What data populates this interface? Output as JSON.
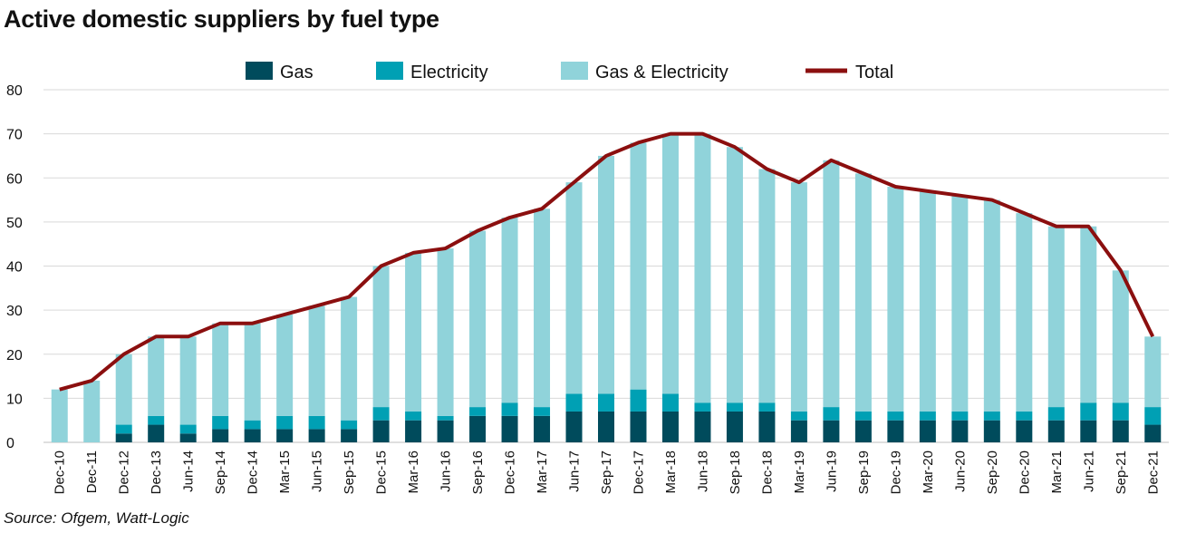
{
  "title": "Active domestic suppliers by fuel type",
  "source": "Source: Ofgem, Watt-Logic",
  "colors": {
    "gas": "#004b5c",
    "electricity": "#00a0b4",
    "gas_electricity": "#90d3da",
    "total": "#8b0f0f",
    "grid": "#d9d9d9",
    "text": "#111111"
  },
  "chart_data": {
    "type": "bar",
    "stacked": true,
    "title": "Active domestic suppliers by fuel type",
    "xlabel": "",
    "ylabel": "",
    "ylim": [
      0,
      80
    ],
    "yticks": [
      0,
      10,
      20,
      30,
      40,
      50,
      60,
      70,
      80
    ],
    "grid": true,
    "legend_position": "top",
    "categories": [
      "Dec-10",
      "Dec-11",
      "Dec-12",
      "Dec-13",
      "Jun-14",
      "Sep-14",
      "Dec-14",
      "Mar-15",
      "Jun-15",
      "Sep-15",
      "Dec-15",
      "Mar-16",
      "Jun-16",
      "Sep-16",
      "Dec-16",
      "Mar-17",
      "Jun-17",
      "Sep-17",
      "Dec-17",
      "Mar-18",
      "Jun-18",
      "Sep-18",
      "Dec-18",
      "Mar-19",
      "Jun-19",
      "Sep-19",
      "Dec-19",
      "Mar-20",
      "Jun-20",
      "Sep-20",
      "Dec-20",
      "Mar-21",
      "Jun-21",
      "Sep-21",
      "Dec-21"
    ],
    "series": [
      {
        "name": "Gas",
        "kind": "bar",
        "values": [
          0,
          0,
          2,
          4,
          2,
          3,
          3,
          3,
          3,
          3,
          5,
          5,
          5,
          6,
          6,
          6,
          7,
          7,
          7,
          7,
          7,
          7,
          7,
          5,
          5,
          5,
          5,
          5,
          5,
          5,
          5,
          5,
          5,
          5,
          4
        ]
      },
      {
        "name": "Electricity",
        "kind": "bar",
        "values": [
          0,
          0,
          2,
          2,
          2,
          3,
          2,
          3,
          3,
          2,
          3,
          2,
          1,
          2,
          3,
          2,
          4,
          4,
          5,
          4,
          2,
          2,
          2,
          2,
          3,
          2,
          2,
          2,
          2,
          2,
          2,
          3,
          4,
          4,
          4
        ]
      },
      {
        "name": "Gas & Electricity",
        "kind": "bar",
        "values": [
          12,
          14,
          16,
          18,
          20,
          21,
          22,
          23,
          25,
          28,
          32,
          36,
          38,
          40,
          42,
          45,
          48,
          54,
          56,
          59,
          61,
          58,
          53,
          52,
          56,
          54,
          51,
          50,
          49,
          48,
          45,
          41,
          40,
          30,
          16
        ]
      },
      {
        "name": "Total",
        "kind": "line",
        "values": [
          12,
          14,
          20,
          24,
          24,
          27,
          27,
          29,
          31,
          33,
          40,
          43,
          44,
          48,
          51,
          53,
          59,
          65,
          68,
          70,
          70,
          67,
          62,
          59,
          64,
          61,
          58,
          57,
          56,
          55,
          52,
          49,
          49,
          39,
          24
        ]
      }
    ]
  }
}
